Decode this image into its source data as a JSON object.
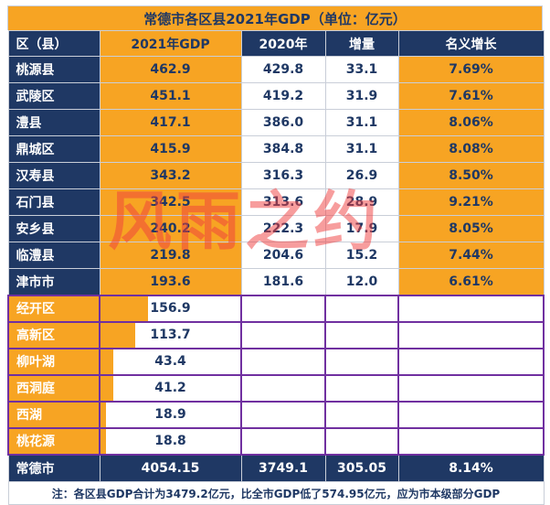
{
  "page": {
    "title": "常德市各区县2021年GDP（单位：亿元）",
    "note": "注：各区县GDP合计为3479.2亿元，比全市GDP低了574.95亿元，应为市本级部分GDP",
    "watermark": "风雨之约"
  },
  "table": {
    "columns": [
      "区（县）",
      "2021年GDP",
      "2020年",
      "增量",
      "名义增长"
    ],
    "rows": [
      {
        "name": "桃源县",
        "gdp": "462.9",
        "y2020": "429.8",
        "delta": "33.1",
        "growth": "7.69%"
      },
      {
        "name": "武陵区",
        "gdp": "451.1",
        "y2020": "419.2",
        "delta": "31.9",
        "growth": "7.61%"
      },
      {
        "name": "澧县",
        "gdp": "417.1",
        "y2020": "386.0",
        "delta": "31.1",
        "growth": "8.06%"
      },
      {
        "name": "鼎城区",
        "gdp": "415.9",
        "y2020": "384.8",
        "delta": "31.1",
        "growth": "8.08%"
      },
      {
        "name": "汉寿县",
        "gdp": "343.2",
        "y2020": "316.3",
        "delta": "26.9",
        "growth": "8.50%"
      },
      {
        "name": "石门县",
        "gdp": "342.5",
        "y2020": "313.6",
        "delta": "28.9",
        "growth": "9.21%"
      },
      {
        "name": "安乡县",
        "gdp": "240.2",
        "y2020": "222.3",
        "delta": "17.9",
        "growth": "8.05%"
      },
      {
        "name": "临澧县",
        "gdp": "219.8",
        "y2020": "204.6",
        "delta": "15.2",
        "growth": "7.44%"
      },
      {
        "name": "津市市",
        "gdp": "193.6",
        "y2020": "181.6",
        "delta": "12.0",
        "growth": "6.61%"
      },
      {
        "name": "经开区",
        "gdp": "156.9",
        "y2020": "",
        "delta": "",
        "growth": ""
      },
      {
        "name": "高新区",
        "gdp": "113.7",
        "y2020": "",
        "delta": "",
        "growth": ""
      },
      {
        "name": "柳叶湖",
        "gdp": "43.4",
        "y2020": "",
        "delta": "",
        "growth": ""
      },
      {
        "name": "西洞庭",
        "gdp": "41.2",
        "y2020": "",
        "delta": "",
        "growth": ""
      },
      {
        "name": "西湖",
        "gdp": "18.9",
        "y2020": "",
        "delta": "",
        "growth": ""
      },
      {
        "name": "桃花源",
        "gdp": "18.8",
        "y2020": "",
        "delta": "",
        "growth": ""
      }
    ],
    "total": {
      "name": "常德市",
      "gdp": "4054.15",
      "y2020": "3749.1",
      "delta": "305.05",
      "growth": "8.14%"
    }
  },
  "colors": {
    "accent_orange": "#F7A423",
    "header_navy": "#1F3864",
    "sub_block_purple": "#7030A0",
    "watermark_red": "#F03E3E"
  },
  "chart_data": {
    "type": "table",
    "title": "常德市各区县2021年GDP（单位：亿元）",
    "columns": [
      "区（县）",
      "2021年GDP",
      "2020年",
      "增量",
      "名义增长"
    ],
    "rows": [
      [
        "桃源县",
        462.9,
        429.8,
        33.1,
        "7.69%"
      ],
      [
        "武陵区",
        451.1,
        419.2,
        31.9,
        "7.61%"
      ],
      [
        "澧县",
        417.1,
        386.0,
        31.1,
        "8.06%"
      ],
      [
        "鼎城区",
        415.9,
        384.8,
        31.1,
        "8.08%"
      ],
      [
        "汉寿县",
        343.2,
        316.3,
        26.9,
        "8.50%"
      ],
      [
        "石门县",
        342.5,
        313.6,
        28.9,
        "9.21%"
      ],
      [
        "安乡县",
        240.2,
        222.3,
        17.9,
        "8.05%"
      ],
      [
        "临澧县",
        219.8,
        204.6,
        15.2,
        "7.44%"
      ],
      [
        "津市市",
        193.6,
        181.6,
        12.0,
        "6.61%"
      ],
      [
        "经开区",
        156.9,
        null,
        null,
        null
      ],
      [
        "高新区",
        113.7,
        null,
        null,
        null
      ],
      [
        "柳叶湖",
        43.4,
        null,
        null,
        null
      ],
      [
        "西洞庭",
        41.2,
        null,
        null,
        null
      ],
      [
        "西湖",
        18.9,
        null,
        null,
        null
      ],
      [
        "桃花源",
        18.8,
        null,
        null,
        null
      ]
    ],
    "total_row": [
      "常德市",
      4054.15,
      3749.1,
      305.05,
      "8.14%"
    ],
    "data_bars": {
      "column": "2021年GDP",
      "scale_max": 462.9
    },
    "note": "注：各区县GDP合计为3479.2亿元，比全市GDP低了574.95亿元，应为市本级部分GDP"
  }
}
